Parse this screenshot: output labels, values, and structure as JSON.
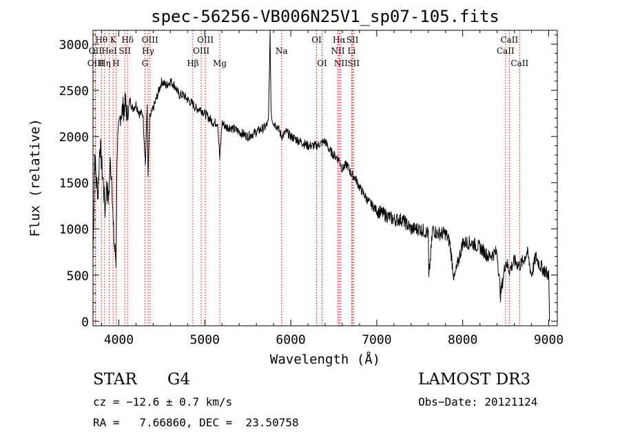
{
  "chart_data": {
    "type": "line",
    "title": "spec-56256-VB006N25V1_sp07-105.fits",
    "xlabel": "Wavelength (Å)",
    "ylabel": "Flux (relative)",
    "xlim": [
      3700,
      9100
    ],
    "ylim": [
      -50,
      3150
    ],
    "x_ticks": [
      4000,
      5000,
      6000,
      7000,
      8000,
      9000
    ],
    "y_ticks": [
      0,
      500,
      1000,
      1500,
      2000,
      2500,
      3000
    ],
    "grid": false,
    "line_color": "#000000",
    "marker_color": "#cc0000",
    "series": [
      {
        "x": [
          3700,
          3720,
          3740,
          3760,
          3780,
          3800,
          3820,
          3840,
          3860,
          3880,
          3900,
          3920,
          3935,
          3950,
          3968,
          3980,
          4000,
          4020,
          4050,
          4080,
          4102,
          4130,
          4160,
          4200,
          4240,
          4280,
          4310,
          4330,
          4340,
          4360,
          4400,
          4450,
          4500,
          4550,
          4600,
          4650,
          4700,
          4750,
          4800,
          4861,
          4900,
          4950,
          5000,
          5050,
          5100,
          5150,
          5175,
          5200,
          5250,
          5300,
          5400,
          5500,
          5600,
          5700,
          5740,
          5760,
          5770,
          5780,
          5800,
          5850,
          5893,
          5950,
          6000,
          6100,
          6200,
          6300,
          6400,
          6450,
          6500,
          6563,
          6600,
          6650,
          6700,
          6750,
          6800,
          6900,
          7000,
          7100,
          7200,
          7300,
          7400,
          7500,
          7600,
          7605,
          7650,
          7700,
          7750,
          7800,
          7850,
          7900,
          8000,
          8100,
          8200,
          8300,
          8400,
          8440,
          8500,
          8542,
          8600,
          8662,
          8700,
          8750,
          8800,
          8850,
          8900,
          8950,
          9000,
          9010
        ],
        "y": [
          700,
          1800,
          1500,
          1400,
          1950,
          1700,
          1500,
          1200,
          1500,
          1300,
          1700,
          1550,
          1000,
          800,
          650,
          1850,
          2050,
          2250,
          2300,
          2350,
          2200,
          2400,
          2300,
          2350,
          2250,
          2250,
          1700,
          2350,
          1550,
          2200,
          2300,
          2450,
          2600,
          2550,
          2600,
          2550,
          2450,
          2450,
          2400,
          2350,
          2300,
          2300,
          2250,
          2200,
          2150,
          2150,
          1750,
          2150,
          2100,
          2100,
          2050,
          2000,
          2050,
          2100,
          2150,
          3100,
          2300,
          2200,
          2150,
          2100,
          2000,
          2050,
          2000,
          1950,
          1900,
          1900,
          1950,
          1850,
          1800,
          1750,
          1650,
          1700,
          1600,
          1550,
          1450,
          1300,
          1200,
          1150,
          1100,
          1100,
          1000,
          1000,
          950,
          450,
          1000,
          950,
          950,
          950,
          850,
          450,
          850,
          850,
          800,
          700,
          750,
          280,
          650,
          550,
          650,
          600,
          650,
          750,
          500,
          700,
          600,
          550,
          500,
          0
        ]
      }
    ],
    "lines": [
      {
        "label": "Hθ",
        "wl": 3798,
        "row": 1
      },
      {
        "label": "OII",
        "wl": 3727,
        "row": 2
      },
      {
        "label": "OIII",
        "wl": 3730,
        "row": 3
      },
      {
        "label": "Hη",
        "wl": 3835,
        "row": 3
      },
      {
        "label": "HeI",
        "wl": 3889,
        "row": 2
      },
      {
        "label": "K",
        "wl": 3934,
        "row": 1
      },
      {
        "label": "SII",
        "wl": 4070,
        "row": 2
      },
      {
        "label": "H",
        "wl": 3968,
        "row": 3
      },
      {
        "label": "Hδ",
        "wl": 4102,
        "row": 1
      },
      {
        "label": "OIII",
        "wl": 4363,
        "row": 1
      },
      {
        "label": "Hγ",
        "wl": 4340,
        "row": 2
      },
      {
        "label": "G",
        "wl": 4305,
        "row": 3
      },
      {
        "label": "Hβ",
        "wl": 4861,
        "row": 3
      },
      {
        "label": "OIII",
        "wl": 4959,
        "row": 2
      },
      {
        "label": "OIII",
        "wl": 5007,
        "row": 1
      },
      {
        "label": "Mg",
        "wl": 5175,
        "row": 3
      },
      {
        "label": "Na",
        "wl": 5893,
        "row": 2
      },
      {
        "label": "OI",
        "wl": 6300,
        "row": 1
      },
      {
        "label": "OI",
        "wl": 6364,
        "row": 3
      },
      {
        "label": "NII",
        "wl": 6548,
        "row": 2
      },
      {
        "label": "Hα",
        "wl": 6563,
        "row": 1
      },
      {
        "label": "NII",
        "wl": 6583,
        "row": 3
      },
      {
        "label": "SII",
        "wl": 6717,
        "row": 1
      },
      {
        "label": "Li",
        "wl": 6708,
        "row": 2
      },
      {
        "label": "SII",
        "wl": 6731,
        "row": 3
      },
      {
        "label": "CaII",
        "wl": 8498,
        "row": 2
      },
      {
        "label": "CaII",
        "wl": 8542,
        "row": 1
      },
      {
        "label": "CaII",
        "wl": 8662,
        "row": 3
      }
    ]
  },
  "info": {
    "class": "STAR",
    "subclass": "G4",
    "survey": "LAMOST DR3",
    "cz": "cz = −12.6 ± 0.7 km/s",
    "obs_date": "Obs−Date: 20121124",
    "radec": "RA =   7.66860, DEC =  23.50758"
  }
}
